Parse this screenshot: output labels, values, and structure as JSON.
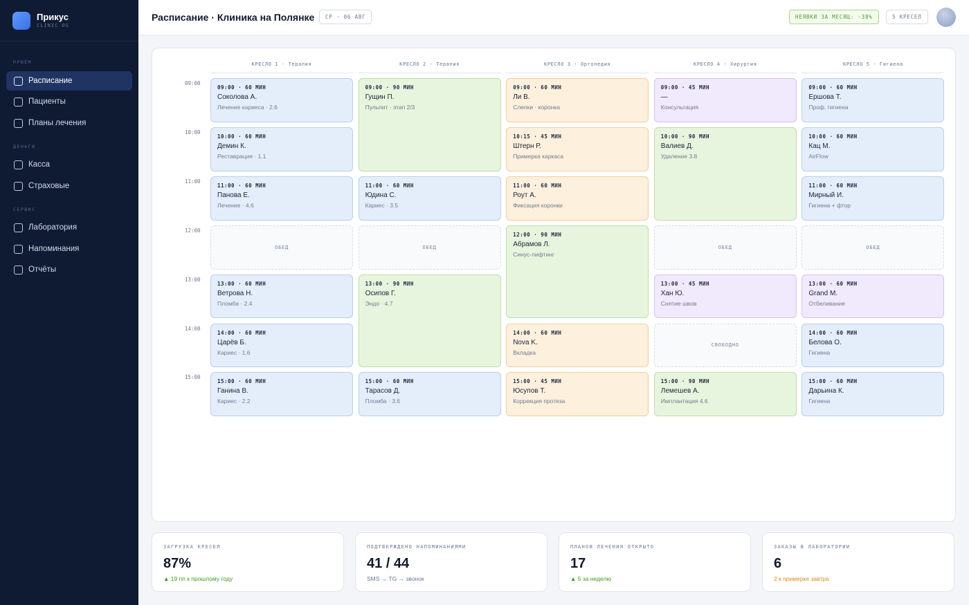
{
  "app": {
    "name": "Прикус",
    "subtitle": "CLINIC OS"
  },
  "sidebar": {
    "sections": [
      {
        "title": "ПРИЁМ",
        "items": [
          {
            "label": "Расписание",
            "active": true
          },
          {
            "label": "Пациенты"
          },
          {
            "label": "Планы лечения"
          }
        ]
      },
      {
        "title": "ДЕНЬГИ",
        "items": [
          {
            "label": "Касса"
          },
          {
            "label": "Страховые"
          }
        ]
      },
      {
        "title": "СЕРВИС",
        "items": [
          {
            "label": "Лаборатория"
          },
          {
            "label": "Напоминания"
          },
          {
            "label": "Отчёты"
          }
        ]
      }
    ]
  },
  "header": {
    "title": "Расписание · Клиника на Полянке",
    "date": "СР · 06 АВГ",
    "noshow": "НЕЯВКИ ЗА МЕСЯЦ: -38%",
    "chairs": "5 КРЕСЕЛ"
  },
  "schedule": {
    "columns": [
      "КРЕСЛО 1 · Терапия",
      "КРЕСЛО 2 · Терапия",
      "КРЕСЛО 3 · Ортопедия",
      "КРЕСЛО 4 · Хирургия",
      "КРЕСЛО 5 · Гигиена"
    ],
    "times": [
      "09:00",
      "10:00",
      "11:00",
      "12:00",
      "13:00",
      "14:00",
      "15:00"
    ],
    "appointments": [
      {
        "col": 0,
        "start": 0,
        "span": 1,
        "color": "blue",
        "time": "09:00 · 60 МИН",
        "name": "Соколова А.",
        "desc": "Лечение кариеса · 2.6"
      },
      {
        "col": 0,
        "start": 1,
        "span": 1,
        "color": "blue",
        "time": "10:00 · 60 МИН",
        "name": "Демин К.",
        "desc": "Реставрация · 1.1"
      },
      {
        "col": 0,
        "start": 2,
        "span": 1,
        "color": "blue",
        "time": "11:00 · 60 МИН",
        "name": "Панова Е.",
        "desc": "Лечение · 4.6"
      },
      {
        "col": 0,
        "start": 3,
        "span": 1,
        "color": "empty",
        "label": "ОБЕД"
      },
      {
        "col": 0,
        "start": 4,
        "span": 1,
        "color": "blue",
        "time": "13:00 · 60 МИН",
        "name": "Ветрова Н.",
        "desc": "Пломба · 2.4"
      },
      {
        "col": 0,
        "start": 5,
        "span": 1,
        "color": "blue",
        "time": "14:00 · 60 МИН",
        "name": "Царёв Б.",
        "desc": "Кариес · 1.6"
      },
      {
        "col": 0,
        "start": 6,
        "span": 1,
        "color": "blue",
        "time": "15:00 · 60 МИН",
        "name": "Ганина В.",
        "desc": "Кариес · 2.2"
      },
      {
        "col": 1,
        "start": 0,
        "span": 2,
        "color": "green",
        "time": "09:00 · 90 МИН",
        "name": "Гущин П.",
        "desc": "Пульпит · этап 2/3"
      },
      {
        "col": 1,
        "start": 2,
        "span": 1,
        "color": "blue",
        "time": "11:00 · 60 МИН",
        "name": "Юдина С.",
        "desc": "Кариес · 3.5"
      },
      {
        "col": 1,
        "start": 3,
        "span": 1,
        "color": "empty",
        "label": "ОБЕД"
      },
      {
        "col": 1,
        "start": 4,
        "span": 2,
        "color": "green",
        "time": "13:00 · 90 МИН",
        "name": "Осипов Г.",
        "desc": "Эндо · 4.7"
      },
      {
        "col": 1,
        "start": 6,
        "span": 1,
        "color": "blue",
        "time": "15:00 · 60 МИН",
        "name": "Тарасов Д.",
        "desc": "Пломба · 3.6"
      },
      {
        "col": 2,
        "start": 0,
        "span": 1,
        "color": "orange",
        "time": "09:00 · 60 МИН",
        "name": "Ли В.",
        "desc": "Слепки · коронка"
      },
      {
        "col": 2,
        "start": 1,
        "span": 1,
        "color": "orange",
        "time": "10:15 · 45 МИН",
        "name": "Штерн Р.",
        "desc": "Примерка каркаса"
      },
      {
        "col": 2,
        "start": 2,
        "span": 1,
        "color": "orange",
        "time": "11:00 · 60 МИН",
        "name": "Роут А.",
        "desc": "Фиксация коронки"
      },
      {
        "col": 2,
        "start": 3,
        "span": 2,
        "color": "green",
        "time": "12:00 · 90 МИН",
        "name": "Абрамов Л.",
        "desc": "Синус-лифтинг"
      },
      {
        "col": 2,
        "start": 5,
        "span": 1,
        "color": "orange",
        "time": "14:00 · 60 МИН",
        "name": "Nova K.",
        "desc": "Вкладка"
      },
      {
        "col": 2,
        "start": 6,
        "span": 1,
        "color": "orange",
        "time": "15:00 · 45 МИН",
        "name": "Юсупов Т.",
        "desc": "Коррекция протеза"
      },
      {
        "col": 3,
        "start": 0,
        "span": 1,
        "color": "purple",
        "time": "09:00 · 45 МИН",
        "name": "—",
        "desc": "Консультация"
      },
      {
        "col": 3,
        "start": 1,
        "span": 2,
        "color": "green",
        "time": "10:00 · 90 МИН",
        "name": "Валиев Д.",
        "desc": "Удаление 3.8"
      },
      {
        "col": 3,
        "start": 3,
        "span": 1,
        "color": "empty",
        "label": "ОБЕД"
      },
      {
        "col": 3,
        "start": 4,
        "span": 1,
        "color": "purple",
        "time": "13:00 · 45 МИН",
        "name": "Хан Ю.",
        "desc": "Снятие швов"
      },
      {
        "col": 3,
        "start": 5,
        "span": 1,
        "color": "empty",
        "label": "СВОБОДНО"
      },
      {
        "col": 3,
        "start": 6,
        "span": 1,
        "color": "green",
        "time": "15:00 · 90 МИН",
        "name": "Лемешев А.",
        "desc": "Имплантация 4.6"
      },
      {
        "col": 4,
        "start": 0,
        "span": 1,
        "color": "blue",
        "time": "09:00 · 60 МИН",
        "name": "Ершова Т.",
        "desc": "Проф. гигиена"
      },
      {
        "col": 4,
        "start": 1,
        "span": 1,
        "color": "blue",
        "time": "10:00 · 60 МИН",
        "name": "Кац М.",
        "desc": "AirFlow"
      },
      {
        "col": 4,
        "start": 2,
        "span": 1,
        "color": "blue",
        "time": "11:00 · 60 МИН",
        "name": "Мирный И.",
        "desc": "Гигиена + фтор"
      },
      {
        "col": 4,
        "start": 3,
        "span": 1,
        "color": "empty",
        "label": "ОБЕД"
      },
      {
        "col": 4,
        "start": 4,
        "span": 1,
        "color": "purple",
        "time": "13:00 · 60 МИН",
        "name": "Grand M.",
        "desc": "Отбеливание"
      },
      {
        "col": 4,
        "start": 5,
        "span": 1,
        "color": "blue",
        "time": "14:00 · 60 МИН",
        "name": "Белова О.",
        "desc": "Гигиена"
      },
      {
        "col": 4,
        "start": 6,
        "span": 1,
        "color": "blue",
        "time": "15:00 · 60 МИН",
        "name": "Дарьина К.",
        "desc": "Гигиена"
      }
    ]
  },
  "stats": [
    {
      "label": "ЗАГРУЗКА КРЕСЕЛ",
      "value": "87%",
      "sub": "▲ 19 пп к прошлому году",
      "tone": "green"
    },
    {
      "label": "ПОДТВЕРЖДЕНО НАПОМИНАНИЯМИ",
      "value": "41 / 44",
      "sub": "SMS → TG → звонок",
      "tone": "gray"
    },
    {
      "label": "ПЛАНОВ ЛЕЧЕНИЯ ОТКРЫТО",
      "value": "17",
      "sub": "▲ 5 за неделю",
      "tone": "green"
    },
    {
      "label": "ЗАКАЗЫ В ЛАБОРАТОРИИ",
      "value": "6",
      "sub": "2 к примерке завтра",
      "tone": "orange"
    }
  ]
}
